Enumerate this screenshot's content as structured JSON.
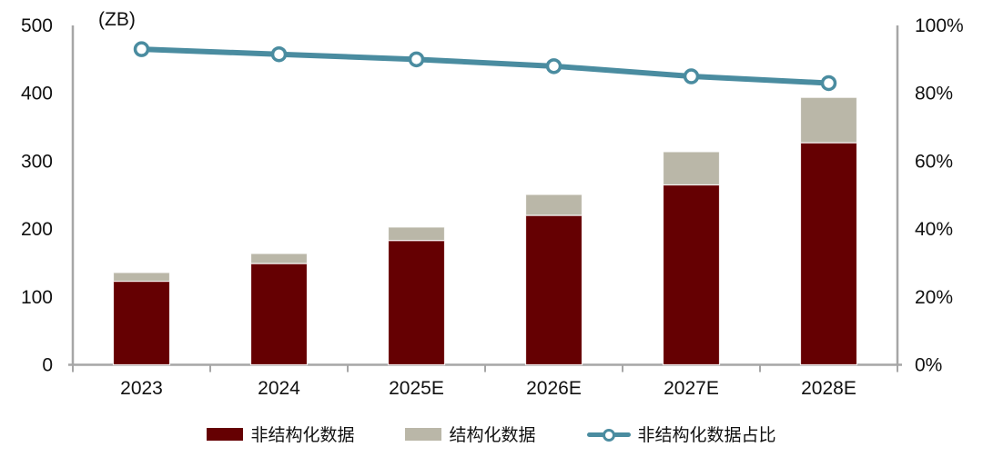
{
  "chart_data": {
    "type": "bar",
    "stacked": true,
    "title": "",
    "unit_label": "(ZB)",
    "categories": [
      "2023",
      "2024",
      "2025E",
      "2026E",
      "2027E",
      "2028E"
    ],
    "series": [
      {
        "name": "非结构化数据",
        "color": "#650002",
        "values": [
          123,
          149,
          183,
          220,
          265,
          327
        ]
      },
      {
        "name": "结构化数据",
        "color": "#BAB7A8",
        "values": [
          13,
          15,
          20,
          31,
          49,
          67
        ]
      }
    ],
    "line_series": {
      "name": "非结构化数据占比",
      "color": "#4A8CA0",
      "axis": "right",
      "values_percent": [
        93,
        91.5,
        90,
        88,
        85,
        83
      ]
    },
    "left_axis": {
      "min": 0,
      "max": 500,
      "step": 100,
      "tick_labels": [
        "0",
        "100",
        "200",
        "300",
        "400",
        "500"
      ]
    },
    "right_axis": {
      "min": 0,
      "max": 100,
      "step": 20,
      "suffix": "%",
      "tick_labels": [
        "0%",
        "20%",
        "40%",
        "60%",
        "80%",
        "100%"
      ]
    },
    "grid": false,
    "legend_position": "bottom",
    "axis_color": "#A6A6A6",
    "text_color": "#111111"
  }
}
